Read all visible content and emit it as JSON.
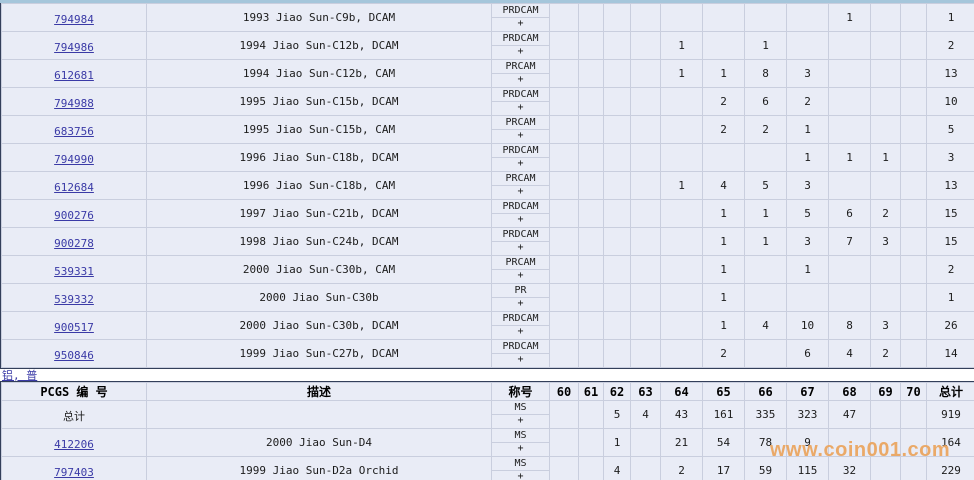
{
  "colors": {
    "row_bg": "#e9ecf6",
    "grid": "#c9cede",
    "dark": "#333f5a",
    "link": "#3a3aa6",
    "watermark": "#eba45c",
    "strip": "#a5c6db"
  },
  "watermark": "www.coin001.com",
  "section_link": {
    "label": "铝, 普"
  },
  "columns": {
    "pcgs_header": "PCGS 编 号",
    "desc_header": "描述",
    "designation_header": "称号",
    "grades": [
      "60",
      "61",
      "62",
      "63",
      "64",
      "65",
      "66",
      "67",
      "68",
      "69",
      "70"
    ],
    "total_header": "总计"
  },
  "proof_table": {
    "rows": [
      {
        "pcgs": "794984",
        "desc": "1993 Jiao Sun-C9b, DCAM",
        "designation": "PRDCAM",
        "plus": "+",
        "counts": {
          "68": "1"
        },
        "total": "1"
      },
      {
        "pcgs": "794986",
        "desc": "1994 Jiao Sun-C12b, DCAM",
        "designation": "PRDCAM",
        "plus": "+",
        "counts": {
          "64": "1",
          "66": "1"
        },
        "total": "2"
      },
      {
        "pcgs": "612681",
        "desc": "1994 Jiao Sun-C12b, CAM",
        "designation": "PRCAM",
        "plus": "+",
        "counts": {
          "64": "1",
          "65": "1",
          "66": "8",
          "67": "3"
        },
        "total": "13"
      },
      {
        "pcgs": "794988",
        "desc": "1995 Jiao Sun-C15b, DCAM",
        "designation": "PRDCAM",
        "plus": "+",
        "counts": {
          "65": "2",
          "66": "6",
          "67": "2"
        },
        "total": "10"
      },
      {
        "pcgs": "683756",
        "desc": "1995 Jiao Sun-C15b, CAM",
        "designation": "PRCAM",
        "plus": "+",
        "counts": {
          "65": "2",
          "66": "2",
          "67": "1"
        },
        "total": "5"
      },
      {
        "pcgs": "794990",
        "desc": "1996 Jiao Sun-C18b, DCAM",
        "designation": "PRDCAM",
        "plus": "+",
        "counts": {
          "67": "1",
          "68": "1",
          "69": "1"
        },
        "total": "3"
      },
      {
        "pcgs": "612684",
        "desc": "1996 Jiao Sun-C18b, CAM",
        "designation": "PRCAM",
        "plus": "+",
        "counts": {
          "64": "1",
          "65": "4",
          "66": "5",
          "67": "3"
        },
        "total": "13"
      },
      {
        "pcgs": "900276",
        "desc": "1997 Jiao Sun-C21b, DCAM",
        "designation": "PRDCAM",
        "plus": "+",
        "counts": {
          "65": "1",
          "66": "1",
          "67": "5",
          "68": "6",
          "69": "2"
        },
        "total": "15"
      },
      {
        "pcgs": "900278",
        "desc": "1998 Jiao Sun-C24b, DCAM",
        "designation": "PRDCAM",
        "plus": "+",
        "counts": {
          "65": "1",
          "66": "1",
          "67": "3",
          "68": "7",
          "69": "3"
        },
        "total": "15"
      },
      {
        "pcgs": "539331",
        "desc": "2000 Jiao Sun-C30b, CAM",
        "designation": "PRCAM",
        "plus": "+",
        "counts": {
          "65": "1",
          "67": "1"
        },
        "total": "2"
      },
      {
        "pcgs": "539332",
        "desc": "2000 Jiao Sun-C30b",
        "designation": "PR",
        "plus": "+",
        "counts": {
          "65": "1"
        },
        "total": "1"
      },
      {
        "pcgs": "900517",
        "desc": "2000 Jiao Sun-C30b, DCAM",
        "designation": "PRDCAM",
        "plus": "+",
        "counts": {
          "65": "1",
          "66": "4",
          "67": "10",
          "68": "8",
          "69": "3"
        },
        "total": "26"
      },
      {
        "pcgs": "950846",
        "desc": "1999 Jiao Sun-C27b, DCAM",
        "designation": "PRDCAM",
        "plus": "+",
        "counts": {
          "65": "2",
          "67": "6",
          "68": "4",
          "69": "2"
        },
        "total": "14"
      }
    ]
  },
  "ms_table": {
    "rows": [
      {
        "pcgs": "总计",
        "is_link": false,
        "desc": "",
        "designation": "MS",
        "plus": "+",
        "counts": {
          "62": "5",
          "63": "4",
          "64": "43",
          "65": "161",
          "66": "335",
          "67": "323",
          "68": "47"
        },
        "total": "919"
      },
      {
        "pcgs": "412206",
        "is_link": true,
        "desc": "2000 Jiao Sun-D4",
        "designation": "MS",
        "plus": "+",
        "counts": {
          "62": "1",
          "64": "21",
          "65": "54",
          "66": "78",
          "67": "9"
        },
        "total": "164"
      },
      {
        "pcgs": "797403",
        "is_link": true,
        "desc": "1999 Jiao Sun-D2a Orchid",
        "designation": "MS",
        "plus": "+",
        "counts": {
          "62": "4",
          "64": "2",
          "65": "17",
          "66": "59",
          "67": "115",
          "68": "32"
        },
        "total": "229"
      }
    ]
  }
}
